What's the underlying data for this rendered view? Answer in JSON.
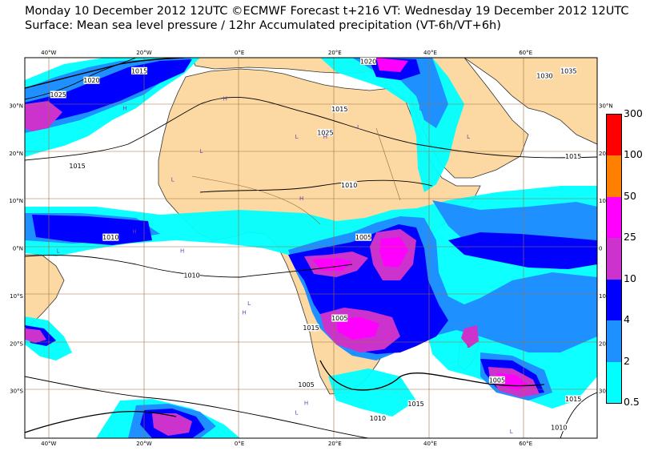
{
  "header": {
    "line1": "Monday 10 December 2012 12UTC ©ECMWF Forecast t+216 VT: Wednesday 19 December 2012 12UTC",
    "line2": "Surface: Mean sea level pressure / 12hr Accumulated precipitation (VT-6h/VT+6h)"
  },
  "map": {
    "projection": "equirectangular",
    "lon_range": [
      -45,
      75
    ],
    "lat_range": [
      -40,
      40
    ],
    "land_color": "#fcd9a2",
    "ocean_color": "#ffffff",
    "grid_color": "#a07040",
    "lon_ticks": [
      {
        "value": -40,
        "label": "40°W"
      },
      {
        "value": -20,
        "label": "20°W"
      },
      {
        "value": 0,
        "label": "0°E"
      },
      {
        "value": 20,
        "label": "20°E"
      },
      {
        "value": 40,
        "label": "40°E"
      },
      {
        "value": 60,
        "label": "60°E"
      }
    ],
    "lat_ticks_left": [
      {
        "value": 30,
        "label": "30°N"
      },
      {
        "value": 20,
        "label": "20°N"
      },
      {
        "value": 10,
        "label": "10°N"
      },
      {
        "value": 0,
        "label": "0°N"
      },
      {
        "value": -10,
        "label": "10°S"
      },
      {
        "value": -20,
        "label": "20°S"
      },
      {
        "value": -30,
        "label": "30°S"
      }
    ],
    "lat_ticks_right": [
      {
        "value": 30,
        "label": "30°N"
      },
      {
        "value": 20,
        "label": "20"
      },
      {
        "value": 10,
        "label": "10"
      },
      {
        "value": 0,
        "label": "0"
      },
      {
        "value": -10,
        "label": "10"
      },
      {
        "value": -20,
        "label": "20"
      },
      {
        "value": -30,
        "label": "30"
      }
    ],
    "isobar_labels": [
      {
        "text": "1015",
        "lon": -21,
        "lat": 37
      },
      {
        "text": "1020",
        "lon": -31,
        "lat": 35
      },
      {
        "text": "1025",
        "lon": -38,
        "lat": 32
      },
      {
        "text": "1015",
        "lon": -34,
        "lat": 17
      },
      {
        "text": "1015",
        "lon": 21,
        "lat": 29
      },
      {
        "text": "1025",
        "lon": 18,
        "lat": 24
      },
      {
        "text": "1010",
        "lon": 23,
        "lat": 13
      },
      {
        "text": "1005",
        "lon": 26,
        "lat": 2
      },
      {
        "text": "1010",
        "lon": -27,
        "lat": 2
      },
      {
        "text": "1010",
        "lon": -10,
        "lat": -6
      },
      {
        "text": "1005",
        "lon": 21,
        "lat": -15
      },
      {
        "text": "1015",
        "lon": 15,
        "lat": -17
      },
      {
        "text": "1005",
        "lon": 14,
        "lat": -29
      },
      {
        "text": "1005",
        "lon": 54,
        "lat": -28
      },
      {
        "text": "1010",
        "lon": 29,
        "lat": -36
      },
      {
        "text": "1015",
        "lon": 37,
        "lat": -33
      },
      {
        "text": "1015",
        "lon": 70,
        "lat": -32
      },
      {
        "text": "1010",
        "lon": 67,
        "lat": -38
      },
      {
        "text": "1015",
        "lon": 70,
        "lat": 19
      },
      {
        "text": "1030",
        "lon": 64,
        "lat": 36
      },
      {
        "text": "1035",
        "lon": 69,
        "lat": 37
      },
      {
        "text": "1020",
        "lon": 27,
        "lat": 39
      }
    ],
    "pressure_centers": [
      {
        "type": "H",
        "lon": -3,
        "lat": 31
      },
      {
        "type": "H",
        "lon": -24,
        "lat": 29
      },
      {
        "type": "L",
        "lon": 12,
        "lat": 23
      },
      {
        "type": "H",
        "lon": 18,
        "lat": 23
      },
      {
        "type": "L",
        "lon": 25,
        "lat": 25
      },
      {
        "type": "L",
        "lon": -8,
        "lat": 20
      },
      {
        "type": "H",
        "lon": 13,
        "lat": 10
      },
      {
        "type": "L",
        "lon": -14,
        "lat": 14
      },
      {
        "type": "H",
        "lon": -22,
        "lat": 3
      },
      {
        "type": "H",
        "lon": -12,
        "lat": -1
      },
      {
        "type": "L",
        "lon": -38,
        "lat": -1
      },
      {
        "type": "L",
        "lon": 2,
        "lat": -12
      },
      {
        "type": "H",
        "lon": 1,
        "lat": -14
      },
      {
        "type": "L",
        "lon": 48,
        "lat": -21
      },
      {
        "type": "H",
        "lon": 14,
        "lat": -33
      },
      {
        "type": "L",
        "lon": 12,
        "lat": -35
      },
      {
        "type": "L",
        "lon": 57,
        "lat": -39
      },
      {
        "type": "L",
        "lon": 38,
        "lat": 29
      },
      {
        "type": "L",
        "lon": 48,
        "lat": 23
      }
    ]
  },
  "colorbar": {
    "levels": [
      {
        "label": "300",
        "color": "#ff0000"
      },
      {
        "label": "100",
        "color": "#ff7f00"
      },
      {
        "label": "50",
        "color": "#ff00ff"
      },
      {
        "label": "25",
        "color": "#cc33cc"
      },
      {
        "label": "10",
        "color": "#0000ff"
      },
      {
        "label": "4",
        "color": "#1e90ff"
      },
      {
        "label": "2",
        "color": "#00ffff"
      },
      {
        "label": "0.5",
        "color": ""
      }
    ]
  }
}
